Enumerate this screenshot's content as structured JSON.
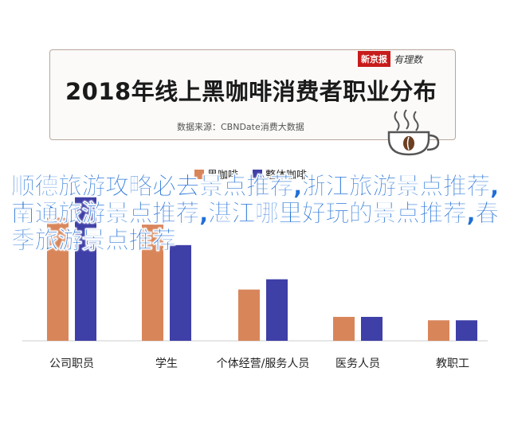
{
  "header": {
    "title": "2018年线上黑咖啡消费者职业分布",
    "source": "数据来源：CBNDate消费大数据",
    "brand_box": "新京报",
    "brand_script": "有理数"
  },
  "overlay_text": "顺德旅游攻略必去景点推荐,浙江旅游景点推荐,南通旅游景点推荐,湛江哪里好玩的景点推荐,春季旅游景点推荐",
  "colors": {
    "series1": "#d9855a",
    "series2": "#3f3fa8",
    "card_border": "#b9a79b",
    "overlay": "#1f6fd6"
  },
  "icons": {
    "cup": "coffee-cup-icon"
  },
  "chart_data": {
    "type": "bar",
    "title": "2018年线上黑咖啡消费者职业分布",
    "categories": [
      "公司职员",
      "学生",
      "个体经营/服务人员",
      "医务人员",
      "教职工"
    ],
    "series": [
      {
        "name": "黑咖啡",
        "values": [
          36,
          34,
          15,
          7,
          6
        ]
      },
      {
        "name": "整体咖啡",
        "values": [
          42,
          28,
          18,
          7,
          6
        ]
      }
    ],
    "ylim": [
      0,
      48
    ],
    "legend_position": "top",
    "grid": false
  }
}
